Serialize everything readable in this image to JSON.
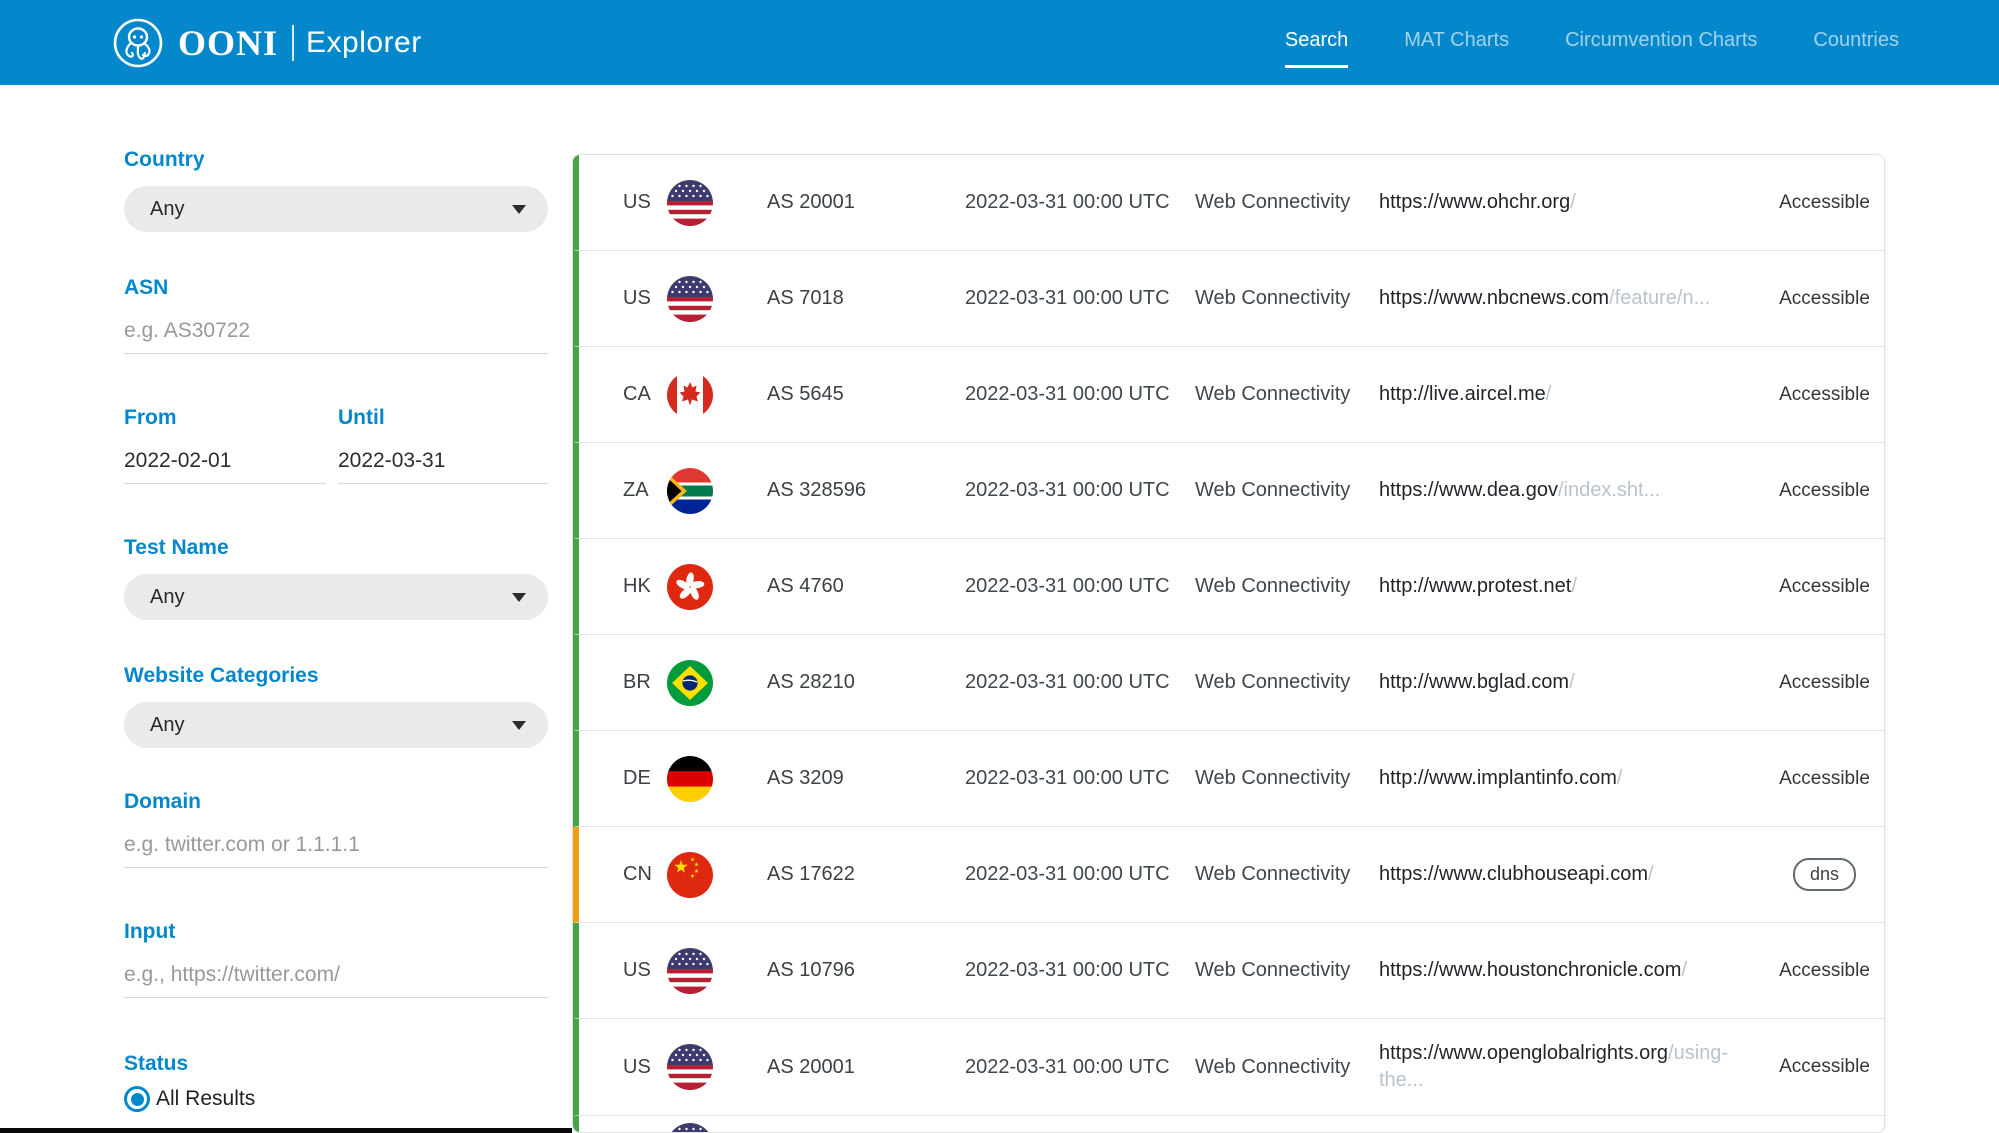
{
  "header": {
    "brand": {
      "name": "OONI",
      "product": "Explorer"
    },
    "nav": [
      {
        "label": "Search",
        "active": true
      },
      {
        "label": "MAT Charts",
        "active": false
      },
      {
        "label": "Circumvention Charts",
        "active": false
      },
      {
        "label": "Countries",
        "active": false
      }
    ]
  },
  "filters": {
    "country": {
      "label": "Country",
      "value": "Any"
    },
    "asn": {
      "label": "ASN",
      "placeholder": "e.g. AS30722"
    },
    "from": {
      "label": "From",
      "value": "2022-02-01"
    },
    "until": {
      "label": "Until",
      "value": "2022-03-31"
    },
    "test_name": {
      "label": "Test Name",
      "value": "Any"
    },
    "website_categories": {
      "label": "Website Categories",
      "value": "Any"
    },
    "domain": {
      "label": "Domain",
      "placeholder": "e.g. twitter.com or 1.1.1.1"
    },
    "input": {
      "label": "Input",
      "placeholder": "e.g., https://twitter.com/"
    },
    "status": {
      "label": "Status",
      "option": "All Results",
      "selected": true
    }
  },
  "results": {
    "rows": [
      {
        "country": "US",
        "flag": "US",
        "asn": "AS 20001",
        "date": "2022-03-31 00:00 UTC",
        "test": "Web Connectivity",
        "url_base": "https://www.ohchr.org",
        "url_path": "/",
        "status": "Accessible",
        "anomaly": false
      },
      {
        "country": "US",
        "flag": "US",
        "asn": "AS 7018",
        "date": "2022-03-31 00:00 UTC",
        "test": "Web Connectivity",
        "url_base": "https://www.nbcnews.com",
        "url_path": "/feature/n...",
        "status": "Accessible",
        "anomaly": false
      },
      {
        "country": "CA",
        "flag": "CA",
        "asn": "AS 5645",
        "date": "2022-03-31 00:00 UTC",
        "test": "Web Connectivity",
        "url_base": "http://live.aircel.me",
        "url_path": "/",
        "status": "Accessible",
        "anomaly": false
      },
      {
        "country": "ZA",
        "flag": "ZA",
        "asn": "AS 328596",
        "date": "2022-03-31 00:00 UTC",
        "test": "Web Connectivity",
        "url_base": "https://www.dea.gov",
        "url_path": "/index.sht...",
        "status": "Accessible",
        "anomaly": false
      },
      {
        "country": "HK",
        "flag": "HK",
        "asn": "AS 4760",
        "date": "2022-03-31 00:00 UTC",
        "test": "Web Connectivity",
        "url_base": "http://www.protest.net",
        "url_path": "/",
        "status": "Accessible",
        "anomaly": false
      },
      {
        "country": "BR",
        "flag": "BR",
        "asn": "AS 28210",
        "date": "2022-03-31 00:00 UTC",
        "test": "Web Connectivity",
        "url_base": "http://www.bglad.com",
        "url_path": "/",
        "status": "Accessible",
        "anomaly": false
      },
      {
        "country": "DE",
        "flag": "DE",
        "asn": "AS 3209",
        "date": "2022-03-31 00:00 UTC",
        "test": "Web Connectivity",
        "url_base": "http://www.implantinfo.com",
        "url_path": "/",
        "status": "Accessible",
        "anomaly": false
      },
      {
        "country": "CN",
        "flag": "CN",
        "asn": "AS 17622",
        "date": "2022-03-31 00:00 UTC",
        "test": "Web Connectivity",
        "url_base": "https://www.clubhouseapi.com",
        "url_path": "/",
        "status": "dns",
        "anomaly": true,
        "badge": true
      },
      {
        "country": "US",
        "flag": "US",
        "asn": "AS 10796",
        "date": "2022-03-31 00:00 UTC",
        "test": "Web Connectivity",
        "url_base": "https://www.houstonchronicle.com",
        "url_path": "/",
        "status": "Accessible",
        "anomaly": false
      },
      {
        "country": "US",
        "flag": "US",
        "asn": "AS 20001",
        "date": "2022-03-31 00:00 UTC",
        "test": "Web Connectivity",
        "url_base": "https://www.openglobalrights.org",
        "url_path": "/using-the...",
        "status": "Accessible",
        "anomaly": false,
        "tall": true
      },
      {
        "country": "",
        "flag": "US",
        "asn": "",
        "date": "",
        "test": "",
        "url_base": "",
        "url_path": "",
        "status": "",
        "anomaly": false,
        "partial": true
      }
    ]
  },
  "colors": {
    "accent": "#0588CB",
    "ok": "#47A347",
    "anomaly_color": "#F39C12"
  }
}
